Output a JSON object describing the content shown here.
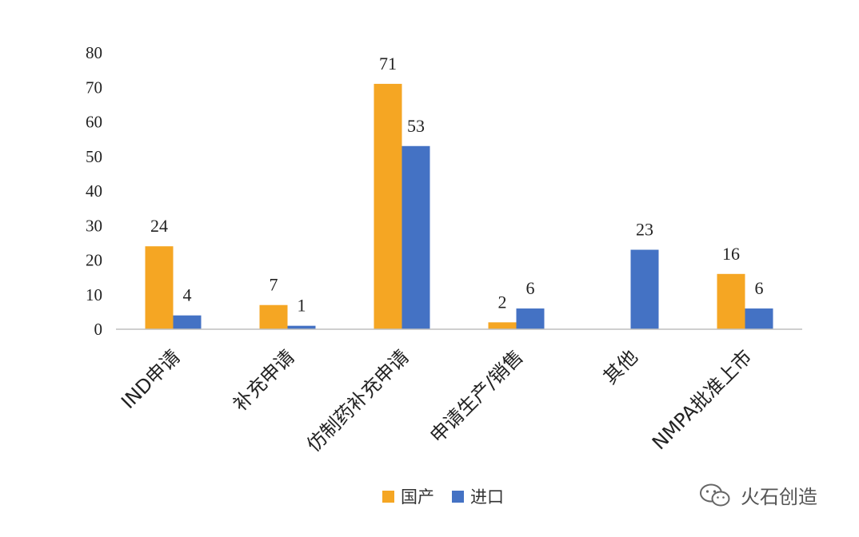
{
  "chart_data": {
    "type": "bar",
    "title": "",
    "xlabel": "",
    "ylabel": "",
    "ylim": [
      0,
      80
    ],
    "yticks": [
      "0",
      "10",
      "20",
      "30",
      "40",
      "50",
      "60",
      "70",
      "80"
    ],
    "grid": false,
    "legend_position": "bottom",
    "categories": [
      "IND申请",
      "补充申请",
      "仿制药补充申请",
      "申请生产/销售",
      "其他",
      "NMPA批准上市"
    ],
    "series": [
      {
        "name": "国产",
        "color": "#F5A623",
        "values": [
          24,
          7,
          71,
          2,
          null,
          16
        ]
      },
      {
        "name": "进口",
        "color": "#4472C4",
        "values": [
          4,
          1,
          53,
          6,
          23,
          6
        ]
      }
    ]
  },
  "watermark": {
    "text": "火石创造",
    "icon": "wechat-icon"
  }
}
